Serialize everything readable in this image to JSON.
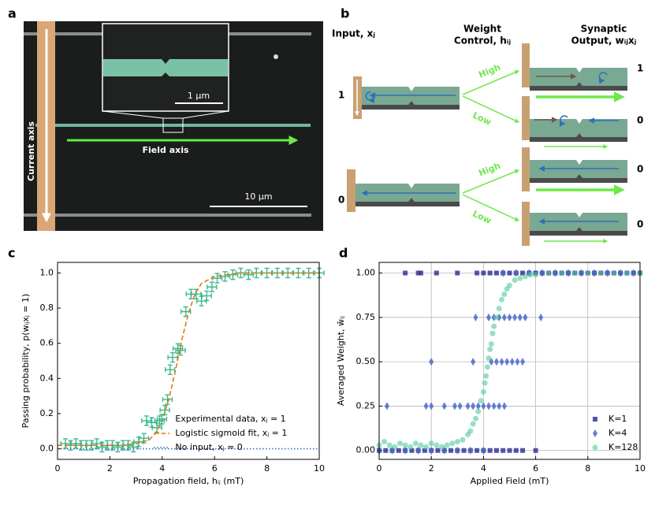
{
  "panel_labels": [
    "a",
    "b",
    "c",
    "d"
  ],
  "image": {
    "current_axis": "Current axis",
    "field_axis": "Field axis",
    "inset_scale": "1 μm",
    "scale": "10 μm"
  },
  "diagram": {
    "input_title": "Input, xⱼ",
    "control_title": [
      "Weight",
      "Control, hᵢⱼ"
    ],
    "output_title": [
      "Synaptic",
      "Output, wᵢⱼxⱼ"
    ],
    "inputs": [
      "1",
      "0"
    ],
    "branches": [
      "High",
      "Low",
      "High",
      "Low"
    ],
    "outputs": [
      "1",
      "0",
      "0",
      "0"
    ]
  },
  "chart_data": [
    {
      "type": "scatter",
      "xlabel": "Propagation field, hᵢⱼ (mT)",
      "ylabel": "Passing probability, p(wᵢⱼxⱼ = 1)",
      "xlim": [
        0,
        10
      ],
      "ylim": [
        -0.06,
        1.06
      ],
      "xticks": [
        0,
        2,
        4,
        6,
        8,
        10
      ],
      "yticks": [
        {
          "value": 0,
          "label": "0.0"
        },
        0.2,
        0.4,
        0.6,
        0.8,
        {
          "value": 1,
          "label": "1.0"
        }
      ],
      "grid": false,
      "legend": "lower right",
      "series": [
        {
          "name": "Experimental data, xⱼ = 1",
          "color": "#3db88c",
          "marker": "plus",
          "x": [
            0.3,
            0.5,
            0.7,
            0.9,
            1.1,
            1.3,
            1.5,
            1.7,
            1.9,
            2.1,
            2.3,
            2.5,
            2.7,
            2.9,
            3.1,
            3.3,
            3.4,
            3.6,
            3.8,
            3.9,
            4.1,
            4.2,
            4.3,
            4.4,
            4.6,
            4.7,
            4.9,
            5.1,
            5.3,
            5.5,
            5.7,
            5.9,
            6.1,
            6.4,
            6.7,
            7.0,
            7.3,
            7.6,
            8.0,
            8.4,
            8.8,
            9.2,
            9.6,
            10.0
          ],
          "values": [
            0.03,
            0.02,
            0.03,
            0.02,
            0.02,
            0.02,
            0.03,
            0.01,
            0.02,
            0.02,
            0.01,
            0.02,
            0.02,
            0.01,
            0.04,
            0.06,
            0.16,
            0.15,
            0.12,
            0.16,
            0.22,
            0.28,
            0.45,
            0.52,
            0.57,
            0.56,
            0.78,
            0.88,
            0.88,
            0.84,
            0.87,
            0.92,
            0.97,
            0.98,
            0.99,
            1.0,
            0.99,
            1.0,
            1.0,
            1.0,
            1.0,
            1.0,
            1.0,
            1.0
          ]
        },
        {
          "name": "Logistic sigmoid fit, xⱼ = 1",
          "color": "#e07b1a",
          "linestyle": "dashed",
          "x": [
            0,
            0.5,
            1,
            1.5,
            2,
            2.5,
            3,
            3.5,
            3.75,
            4,
            4.25,
            4.5,
            4.75,
            5,
            5.25,
            5.5,
            6,
            6.5,
            7,
            8,
            9,
            10
          ],
          "values": [
            0.02,
            0.02,
            0.02,
            0.02,
            0.02,
            0.02,
            0.03,
            0.05,
            0.09,
            0.16,
            0.28,
            0.44,
            0.62,
            0.77,
            0.88,
            0.94,
            0.98,
            0.99,
            1.0,
            1.0,
            1.0,
            1.0
          ]
        },
        {
          "name": "No input, xⱼ = 0",
          "color": "#3a6cc4",
          "linestyle": "dotted",
          "x": [
            0,
            10
          ],
          "values": [
            0,
            0
          ]
        }
      ]
    },
    {
      "type": "scatter",
      "xlabel": "Applied Field (mT)",
      "ylabel": "Averaged Weight, w̄ᵢⱼ",
      "xlim": [
        0,
        10
      ],
      "ylim": [
        -0.05,
        1.06
      ],
      "xticks": [
        0,
        2,
        4,
        6,
        8,
        10
      ],
      "yticks": [
        {
          "value": 0,
          "label": "0.00"
        },
        0.25,
        {
          "value": 0.5,
          "label": "0.50"
        },
        0.75,
        {
          "value": 1,
          "label": "1.00"
        }
      ],
      "grid": true,
      "legend": "lower right",
      "series": [
        {
          "name": "K=1",
          "color": "#35359a",
          "marker": "square",
          "x": [
            1.0,
            1.5,
            1.6,
            2.2,
            3.0,
            3.75,
            4.0,
            4.25,
            4.5,
            4.75,
            5.0,
            5.25,
            5.5,
            5.75,
            6.0,
            6.25,
            6.5,
            6.75,
            7.0,
            7.25,
            7.5,
            7.75,
            8.0,
            8.25,
            8.5,
            8.75,
            9.0,
            9.25,
            9.5,
            9.75,
            10.0,
            0,
            0.25,
            0.5,
            0.75,
            1.0,
            1.25,
            1.5,
            1.75,
            2.0,
            2.25,
            2.5,
            2.75,
            3.0,
            3.25,
            3.5,
            3.75,
            4.0,
            4.25,
            4.5,
            4.75,
            5.0,
            5.25,
            5.5,
            6.0
          ],
          "values": [
            1,
            1,
            1,
            1,
            1,
            1,
            1,
            1,
            1,
            1,
            1,
            1,
            1,
            1,
            1,
            1,
            1,
            1,
            1,
            1,
            1,
            1,
            1,
            1,
            1,
            1,
            1,
            1,
            1,
            1,
            1,
            0,
            0,
            0,
            0,
            0,
            0,
            0,
            0,
            0,
            0,
            0,
            0,
            0,
            0,
            0,
            0,
            0,
            0,
            0,
            0,
            0,
            0,
            0,
            0
          ]
        },
        {
          "name": "K=4",
          "color": "#4a68c8",
          "marker": "diamond",
          "x": [
            4.75,
            5.25,
            5.75,
            6.25,
            6.75,
            7.25,
            7.75,
            8.25,
            8.75,
            9.25,
            9.75,
            3.7,
            4.2,
            4.4,
            4.6,
            4.8,
            5.0,
            5.2,
            5.4,
            5.6,
            6.2,
            2.0,
            3.6,
            4.3,
            4.5,
            4.7,
            4.9,
            5.1,
            5.3,
            5.5,
            0.3,
            1.8,
            2.0,
            2.5,
            2.9,
            3.1,
            3.4,
            3.6,
            3.8,
            4.0,
            4.2,
            4.4,
            4.6,
            4.8,
            0,
            0.5,
            1.0,
            1.5,
            2.0,
            2.5,
            3.0,
            3.5,
            4.0
          ],
          "values": [
            1,
            1,
            1,
            1,
            1,
            1,
            1,
            1,
            1,
            1,
            1,
            0.75,
            0.75,
            0.75,
            0.75,
            0.75,
            0.75,
            0.75,
            0.75,
            0.75,
            0.75,
            0.5,
            0.5,
            0.5,
            0.5,
            0.5,
            0.5,
            0.5,
            0.5,
            0.5,
            0.25,
            0.25,
            0.25,
            0.25,
            0.25,
            0.25,
            0.25,
            0.25,
            0.25,
            0.25,
            0.25,
            0.25,
            0.25,
            0.25,
            0,
            0,
            0,
            0,
            0,
            0,
            0,
            0,
            0
          ]
        },
        {
          "name": "K=128",
          "color": "#52cc98",
          "marker": "circle",
          "x": [
            0,
            0.2,
            0.4,
            0.6,
            0.8,
            1.0,
            1.2,
            1.4,
            1.6,
            1.8,
            2.0,
            2.2,
            2.4,
            2.6,
            2.8,
            3.0,
            3.2,
            3.4,
            3.5,
            3.6,
            3.7,
            3.8,
            3.9,
            4.0,
            4.05,
            4.1,
            4.15,
            4.2,
            4.25,
            4.3,
            4.35,
            4.4,
            4.5,
            4.6,
            4.7,
            4.8,
            4.9,
            5.0,
            5.2,
            5.4,
            5.6,
            5.8,
            6.0,
            6.5,
            7.0,
            7.5,
            8.0,
            8.5,
            9.0,
            9.5,
            10.0
          ],
          "values": [
            0.03,
            0.05,
            0.03,
            0.02,
            0.04,
            0.03,
            0.02,
            0.04,
            0.03,
            0.02,
            0.04,
            0.03,
            0.02,
            0.03,
            0.04,
            0.05,
            0.06,
            0.09,
            0.11,
            0.15,
            0.18,
            0.22,
            0.28,
            0.33,
            0.38,
            0.42,
            0.47,
            0.52,
            0.57,
            0.6,
            0.66,
            0.7,
            0.75,
            0.8,
            0.85,
            0.88,
            0.91,
            0.93,
            0.96,
            0.97,
            0.98,
            0.99,
            0.99,
            1.0,
            1.0,
            1.0,
            1.0,
            1.0,
            1.0,
            1.0,
            1.0
          ]
        }
      ]
    }
  ]
}
